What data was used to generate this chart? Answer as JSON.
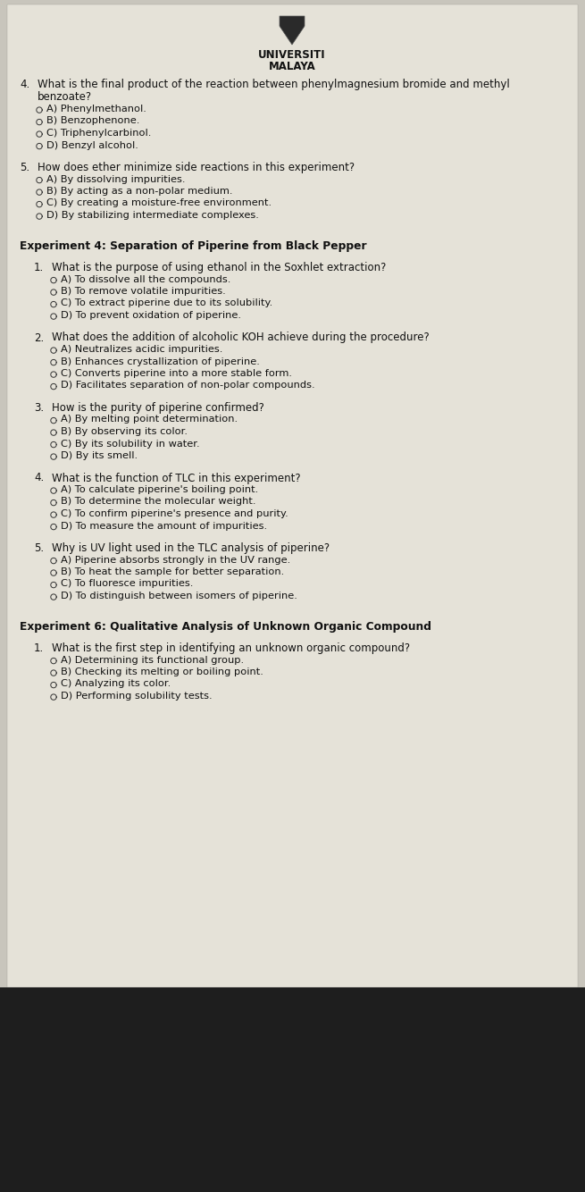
{
  "bg_color": "#c8c5bc",
  "paper_color": "#e5e2d8",
  "text_color": "#111111",
  "dark_bottom_color": "#1e1e1e",
  "logo_line1": "UNIVERSITI",
  "logo_line2": "MALAYA",
  "shield_color": "#2a2a2a",
  "bullet_color": "#333333",
  "fs_base": 8.5,
  "fs_header": 8.8,
  "fs_logo": 8.5,
  "sections": [
    {
      "type": "question",
      "number": "4.",
      "indent": 0,
      "lines": [
        "What is the final product of the reaction between phenylmagnesium bromide and methyl",
        "benzoate?"
      ],
      "options": [
        "A) Phenylmethanol.",
        "B) Benzophenone.",
        "C) Triphenylcarbinol.",
        "D) Benzyl alcohol."
      ]
    },
    {
      "type": "question",
      "number": "5.",
      "indent": 0,
      "lines": [
        "How does ether minimize side reactions in this experiment?"
      ],
      "options": [
        "A) By dissolving impurities.",
        "B) By acting as a non-polar medium.",
        "C) By creating a moisture-free environment.",
        "D) By stabilizing intermediate complexes."
      ]
    },
    {
      "type": "header",
      "text": "Experiment 4: Separation of Piperine from Black Pepper"
    },
    {
      "type": "question",
      "number": "1.",
      "indent": 1,
      "lines": [
        "What is the purpose of using ethanol in the Soxhlet extraction?"
      ],
      "options": [
        "A) To dissolve all the compounds.",
        "B) To remove volatile impurities.",
        "C) To extract piperine due to its solubility.",
        "D) To prevent oxidation of piperine."
      ]
    },
    {
      "type": "question",
      "number": "2.",
      "indent": 1,
      "lines": [
        "What does the addition of alcoholic KOH achieve during the procedure?"
      ],
      "options": [
        "A) Neutralizes acidic impurities.",
        "B) Enhances crystallization of piperine.",
        "C) Converts piperine into a more stable form.",
        "D) Facilitates separation of non-polar compounds."
      ]
    },
    {
      "type": "question",
      "number": "3.",
      "indent": 1,
      "lines": [
        "How is the purity of piperine confirmed?"
      ],
      "options": [
        "A) By melting point determination.",
        "B) By observing its color.",
        "C) By its solubility in water.",
        "D) By its smell."
      ]
    },
    {
      "type": "question",
      "number": "4.",
      "indent": 1,
      "lines": [
        "What is the function of TLC in this experiment?"
      ],
      "options": [
        "A) To calculate piperine's boiling point.",
        "B) To determine the molecular weight.",
        "C) To confirm piperine's presence and purity.",
        "D) To measure the amount of impurities."
      ]
    },
    {
      "type": "question",
      "number": "5.",
      "indent": 1,
      "lines": [
        "Why is UV light used in the TLC analysis of piperine?"
      ],
      "options": [
        "A) Piperine absorbs strongly in the UV range.",
        "B) To heat the sample for better separation.",
        "C) To fluoresce impurities.",
        "D) To distinguish between isomers of piperine."
      ]
    },
    {
      "type": "header",
      "text": "Experiment 6: Qualitative Analysis of Unknown Organic Compound"
    },
    {
      "type": "question",
      "number": "1.",
      "indent": 1,
      "lines": [
        "What is the first step in identifying an unknown organic compound?"
      ],
      "options": [
        "A) Determining its functional group.",
        "B) Checking its melting or boiling point.",
        "C) Analyzing its color.",
        "D) Performing solubility tests."
      ]
    }
  ]
}
